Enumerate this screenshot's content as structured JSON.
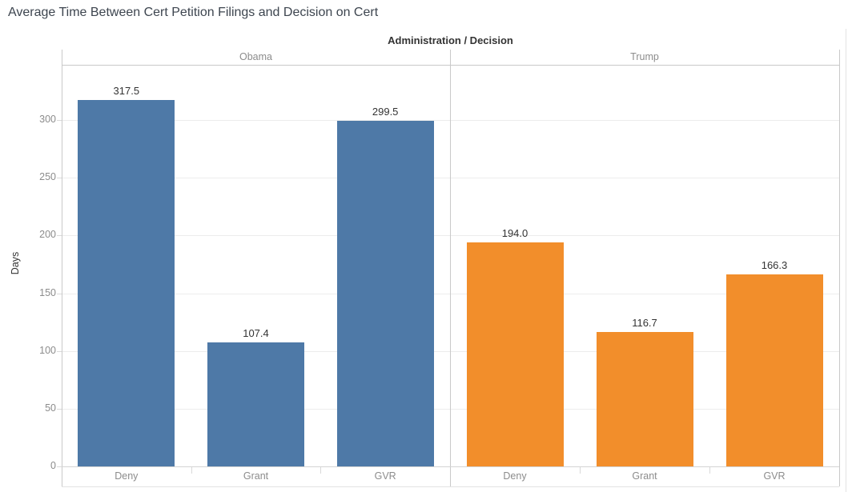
{
  "app": {
    "title": "Average Time Between Cert Petition Filings and Decision on Cert"
  },
  "chart_data": {
    "type": "bar",
    "title": "Average Time Between Cert Petition Filings and Decision on Cert",
    "column_header": "Administration / Decision",
    "ylabel": "Days",
    "yticks": [
      0,
      50,
      100,
      150,
      200,
      250,
      300
    ],
    "ylim": [
      0,
      348
    ],
    "grid": true,
    "legend": "none",
    "panels": [
      {
        "name": "Obama",
        "color": "#4e79a7",
        "categories": [
          "Deny",
          "Grant",
          "GVR"
        ],
        "values": [
          317.5,
          107.4,
          299.5
        ],
        "value_labels": [
          "317.5",
          "107.4",
          "299.5"
        ]
      },
      {
        "name": "Trump",
        "color": "#f28e2b",
        "categories": [
          "Deny",
          "Grant",
          "GVR"
        ],
        "values": [
          194.0,
          116.7,
          166.3
        ],
        "value_labels": [
          "194.0",
          "116.7",
          "166.3"
        ]
      }
    ]
  },
  "colors": {
    "obama_bar": "#4e79a7",
    "trump_bar": "#f28e2b",
    "title_text": "#3d454f",
    "column_header_text": "#333333",
    "panel_label_text": "#8c8c8c",
    "tick_label_text": "#8c8c8c",
    "value_label_text": "#333333",
    "axis_line": "#c9c9c9",
    "baseline": "#d4d4d4",
    "gridline": "#ececec",
    "tick_mark": "#d9d9d9",
    "outer_border": "#e3e3e3"
  }
}
